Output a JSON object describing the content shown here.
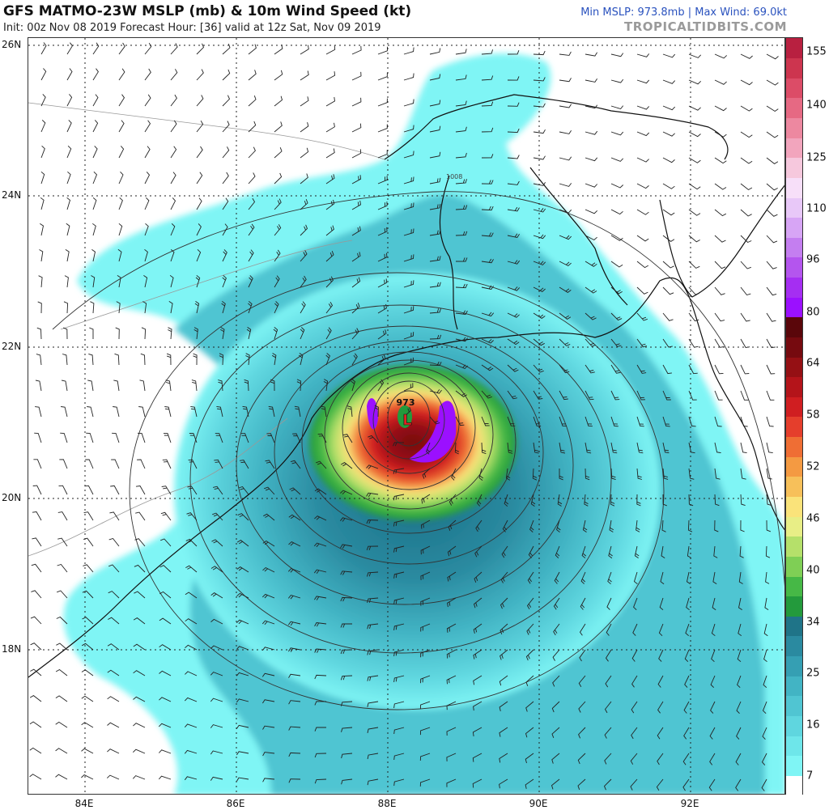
{
  "header": {
    "title": "GFS MATMO-23W MSLP (mb) & 10m Wind Speed (kt)",
    "subtitle": "Init: 00z Nov 08 2019   Forecast Hour: [36]   valid at 12z Sat, Nov 09 2019",
    "stats": "Min MSLP: 973.8mb | Max Wind: 69.0kt",
    "brand": "TROPICALTIDBITS.COM"
  },
  "map": {
    "lat_labels": [
      "26N",
      "24N",
      "22N",
      "20N",
      "18N"
    ],
    "lon_labels": [
      "84E",
      "86E",
      "88E",
      "90E",
      "92E"
    ],
    "lat_range": [
      16.1,
      26.2
    ],
    "lon_range": [
      83.2,
      93.3
    ],
    "low_label": "L",
    "low_pressure": "973",
    "isobar_label": "1008",
    "storm_center": {
      "lon": 88.2,
      "lat": 21.0
    }
  },
  "colorbar": {
    "labels": [
      "155",
      "140",
      "125",
      "110",
      "96",
      "80",
      "64",
      "58",
      "52",
      "46",
      "40",
      "34",
      "25",
      "16",
      "7"
    ],
    "colors": [
      "#ffffff",
      "#7ff5f5",
      "#6ee6ea",
      "#5fd6df",
      "#50c5d2",
      "#42b4c4",
      "#359fb3",
      "#2a8aa0",
      "#1f7488",
      "#239a3c",
      "#46b846",
      "#7fcf55",
      "#b5e06a",
      "#e8ee86",
      "#fae37a",
      "#f7c05a",
      "#f49a42",
      "#ef6e34",
      "#e53e2c",
      "#d01e21",
      "#b4141a",
      "#951014",
      "#760a0f",
      "#5a060a",
      "#9b10ff",
      "#a52ef2",
      "#b455ee",
      "#c47ef0",
      "#d7a5f5",
      "#e8c8f8",
      "#f7dff9",
      "#f6c8dd",
      "#f2a5bd",
      "#ed88a0",
      "#e66983",
      "#dc4c67",
      "#cd354f",
      "#b82040"
    ]
  }
}
